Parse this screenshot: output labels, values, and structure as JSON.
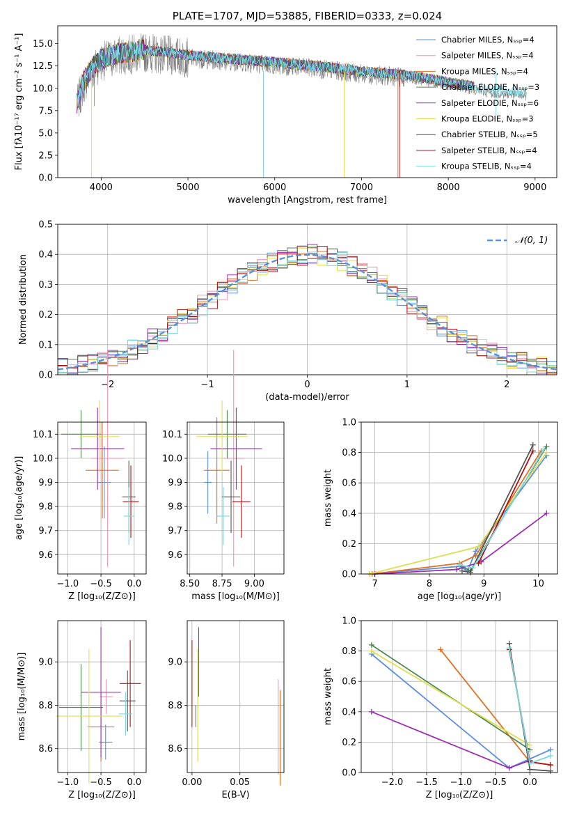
{
  "colors": {
    "chabrier_miles": "#5b8fe0",
    "salpeter_miles": "#f28fb5",
    "kroupa_miles": "#b8860b",
    "chabrier_elodie": "#4f8a4f",
    "salpeter_elodie": "#9b30b0",
    "kroupa_elodie": "#dede50",
    "chabrier_stelib": "#555555",
    "salpeter_stelib": "#b01010",
    "kroupa_stelib": "#78d8e0",
    "orange": "#e07020",
    "gaussian": "#5b8fd8"
  },
  "chart_data": [
    {
      "type": "line",
      "title": "PLATE=1707, MJD=53885, FIBERID=0333, z=0.024",
      "xlabel": "wavelength [Angstrom, rest frame]",
      "ylabel": "Flux [fλ10⁻¹⁷ erg cm⁻² s⁻¹ A⁻¹]",
      "xlim": [
        3500,
        9250
      ],
      "ylim": [
        0,
        17
      ],
      "xticks": [
        "4000",
        "5000",
        "6000",
        "7000",
        "8000",
        "9000"
      ],
      "yticks": [
        "0.0",
        "2.5",
        "5.0",
        "7.5",
        "10.0",
        "12.5",
        "15.0"
      ],
      "legend_position": "top-right",
      "legend": [
        "Chabrier MILES, Nₛₛₚ=4",
        "Salpeter MILES, Nₛₛₚ=4",
        "Kroupa MILES, Nₛₛₚ=4",
        "Chabrier ELODIE, Nₛₛₚ=3",
        "Salpeter ELODIE, Nₛₛₚ=6",
        "Kroupa ELODIE, Nₛₛₚ=3",
        "Chabrier STELIB, Nₛₛₚ=5",
        "Salpeter STELIB, Nₛₛₚ=4",
        "Kroupa STELIB, Nₛₛₚ=4"
      ],
      "continuum": [
        [
          3720,
          8
        ],
        [
          3800,
          10.5
        ],
        [
          3900,
          12
        ],
        [
          4000,
          13
        ],
        [
          4200,
          13.6
        ],
        [
          4500,
          14
        ],
        [
          5000,
          13.4
        ],
        [
          5500,
          13
        ],
        [
          6000,
          12.6
        ],
        [
          6500,
          12.2
        ],
        [
          7000,
          11.6
        ],
        [
          7500,
          11.2
        ],
        [
          8000,
          10.4
        ],
        [
          8500,
          9.5
        ],
        [
          8900,
          9.2
        ]
      ]
    },
    {
      "type": "line",
      "xlabel": "(data-model)/error",
      "ylabel": "Normed distribution",
      "xlim": [
        -2.5,
        2.5
      ],
      "ylim": [
        0,
        0.5
      ],
      "xticks": [
        "−2",
        "−1",
        "0",
        "1",
        "2"
      ],
      "yticks": [
        "0.0",
        "0.1",
        "0.2",
        "0.3",
        "0.4",
        "0.5"
      ],
      "legend": [
        "𝒩(0, 1)"
      ],
      "legend_position": "top-right",
      "series": [
        {
          "name": "𝒩(0, 1)",
          "mu": 0,
          "sigma": 1
        }
      ]
    },
    {
      "type": "scatter",
      "xlabel": "Z [log₁₀(Z/Z⊙)]",
      "ylabel": "age  [log₁₀(age/yr)]",
      "xlim": [
        -1.15,
        0.18
      ],
      "ylim": [
        9.52,
        10.15
      ],
      "xticks": [
        "−1.0",
        "−0.5",
        "0.0"
      ],
      "yticks": [
        "9.6",
        "9.7",
        "9.8",
        "9.9",
        "10.0",
        "10.1"
      ],
      "points": [
        {
          "x": -0.45,
          "y": 9.9
        },
        {
          "x": -0.4,
          "y": 10.0
        },
        {
          "x": -0.48,
          "y": 9.95
        },
        {
          "x": -0.8,
          "y": 10.1
        },
        {
          "x": -0.55,
          "y": 10.04
        },
        {
          "x": -0.52,
          "y": 10.09
        },
        {
          "x": -0.08,
          "y": 9.84
        },
        {
          "x": -0.05,
          "y": 9.82
        },
        {
          "x": -0.08,
          "y": 9.76
        }
      ]
    },
    {
      "type": "scatter",
      "xlabel": "mass [log₁₀(M/M⊙)]",
      "ylabel": "",
      "xlim": [
        8.48,
        9.23
      ],
      "ylim": [
        9.52,
        10.15
      ],
      "xticks": [
        "8.50",
        "8.75",
        "9.00"
      ],
      "yticks": [
        "9.6",
        "9.7",
        "9.8",
        "9.9",
        "10.0",
        "10.1"
      ],
      "points": [
        {
          "x": 8.64,
          "y": 9.9
        },
        {
          "x": 8.84,
          "y": 10.0
        },
        {
          "x": 8.71,
          "y": 9.95
        },
        {
          "x": 8.79,
          "y": 10.1
        },
        {
          "x": 8.86,
          "y": 10.04
        },
        {
          "x": 8.75,
          "y": 10.09
        },
        {
          "x": 8.82,
          "y": 9.84
        },
        {
          "x": 8.9,
          "y": 9.82
        },
        {
          "x": 8.76,
          "y": 9.76
        }
      ]
    },
    {
      "type": "line",
      "xlabel": "age  [log₁₀(age/yr)]",
      "ylabel": "mass weight",
      "xlim": [
        6.75,
        10.35
      ],
      "ylim": [
        0,
        1.0
      ],
      "xticks": [
        "7",
        "8",
        "9",
        "10"
      ],
      "yticks": [
        "0.0",
        "0.2",
        "0.4",
        "0.6",
        "0.8",
        "1.0"
      ],
      "series": [
        {
          "color": "#5b8fe0",
          "points": [
            [
              6.9,
              0
            ],
            [
              8.55,
              0.05
            ],
            [
              8.7,
              0.02
            ],
            [
              8.85,
              0.15
            ],
            [
              10.15,
              0.78
            ]
          ]
        },
        {
          "color": "#e07020",
          "points": [
            [
              6.95,
              0
            ],
            [
              8.55,
              0.07
            ],
            [
              8.85,
              0.12
            ],
            [
              10.05,
              0.81
            ]
          ]
        },
        {
          "color": "#4f8a4f",
          "points": [
            [
              8.6,
              0.05
            ],
            [
              8.75,
              0.02
            ],
            [
              10.15,
              0.84
            ]
          ]
        },
        {
          "color": "#9b30b0",
          "points": [
            [
              7.0,
              0
            ],
            [
              8.5,
              0.03
            ],
            [
              8.95,
              0.08
            ],
            [
              10.15,
              0.4
            ]
          ]
        },
        {
          "color": "#dede50",
          "points": [
            [
              6.9,
              0
            ],
            [
              8.9,
              0.18
            ],
            [
              10.15,
              0.8
            ]
          ]
        },
        {
          "color": "#555555",
          "points": [
            [
              8.6,
              0.02
            ],
            [
              8.75,
              0.01
            ],
            [
              9.9,
              0.85
            ]
          ]
        },
        {
          "color": "#b01010",
          "points": [
            [
              8.9,
              0.07
            ],
            [
              9.9,
              0.81
            ]
          ]
        },
        {
          "color": "#78d8e0",
          "points": [
            [
              8.55,
              0.06
            ],
            [
              8.8,
              0.04
            ],
            [
              10.1,
              0.82
            ]
          ]
        }
      ]
    },
    {
      "type": "scatter",
      "xlabel": "Z [log₁₀(Z/Z⊙)]",
      "ylabel": "mass [log₁₀(M/M⊙)]",
      "xlim": [
        -1.15,
        0.18
      ],
      "ylim": [
        8.49,
        9.19
      ],
      "xticks": [
        "−1.0",
        "−0.5",
        "0.0"
      ],
      "yticks": [
        "8.6",
        "8.8",
        "9.0"
      ],
      "points": [
        {
          "x": -0.43,
          "y": 8.63
        },
        {
          "x": -0.42,
          "y": 8.84
        },
        {
          "x": -0.5,
          "y": 8.7
        },
        {
          "x": -0.8,
          "y": 8.79
        },
        {
          "x": -0.5,
          "y": 8.86
        },
        {
          "x": -0.68,
          "y": 8.75
        },
        {
          "x": -0.1,
          "y": 8.82
        },
        {
          "x": -0.06,
          "y": 8.9
        },
        {
          "x": -0.13,
          "y": 8.76
        }
      ]
    },
    {
      "type": "scatter",
      "xlabel": "E(B-V)",
      "ylabel": "",
      "xlim": [
        -0.005,
        0.096
      ],
      "ylim": [
        8.49,
        9.19
      ],
      "xticks": [
        "0.00",
        "0.05"
      ],
      "yticks": [
        "8.6",
        "8.8",
        "9.0"
      ],
      "points": [
        {
          "x": 0.0,
          "y": 8.9
        },
        {
          "x": 0.007,
          "y": 9.0
        },
        {
          "x": 0.006,
          "y": 8.8
        },
        {
          "x": 0.004,
          "y": 8.75
        },
        {
          "x": 0.09,
          "y": 8.7
        },
        {
          "x": 0.092,
          "y": 8.65
        }
      ]
    },
    {
      "type": "line",
      "xlabel": "Z [log₁₀(Z/Z⊙)]",
      "ylabel": "mass weight",
      "xlim": [
        -2.45,
        0.4
      ],
      "ylim": [
        0,
        1.0
      ],
      "xticks": [
        "−2.0",
        "−1.5",
        "−1.0",
        "−0.5",
        "0.0"
      ],
      "yticks": [
        "0.0",
        "0.2",
        "0.4",
        "0.6",
        "0.8",
        "1.0"
      ],
      "series": [
        {
          "color": "#5b8fe0",
          "points": [
            [
              -2.3,
              0.78
            ],
            [
              -0.3,
              0.03
            ],
            [
              0.3,
              0.15
            ]
          ]
        },
        {
          "color": "#e07020",
          "points": [
            [
              -1.3,
              0.81
            ],
            [
              0.0,
              0.07
            ],
            [
              0.3,
              0.05
            ]
          ]
        },
        {
          "color": "#4f8a4f",
          "points": [
            [
              -2.3,
              0.84
            ],
            [
              0.0,
              0.15
            ]
          ]
        },
        {
          "color": "#9b30b0",
          "points": [
            [
              -2.3,
              0.4
            ],
            [
              -0.3,
              0.03
            ],
            [
              0.0,
              0.08
            ]
          ]
        },
        {
          "color": "#dede50",
          "points": [
            [
              -2.3,
              0.8
            ],
            [
              0.0,
              0.18
            ]
          ]
        },
        {
          "color": "#555555",
          "points": [
            [
              -0.3,
              0.85
            ],
            [
              0.0,
              0.02
            ],
            [
              0.3,
              0.01
            ]
          ]
        },
        {
          "color": "#b01010",
          "points": [
            [
              -0.3,
              0.81
            ],
            [
              0.0,
              0.07
            ],
            [
              0.3,
              0.05
            ]
          ]
        },
        {
          "color": "#78d8e0",
          "points": [
            [
              -0.3,
              0.82
            ],
            [
              0.0,
              0.06
            ],
            [
              0.3,
              0.11
            ]
          ]
        }
      ]
    }
  ]
}
